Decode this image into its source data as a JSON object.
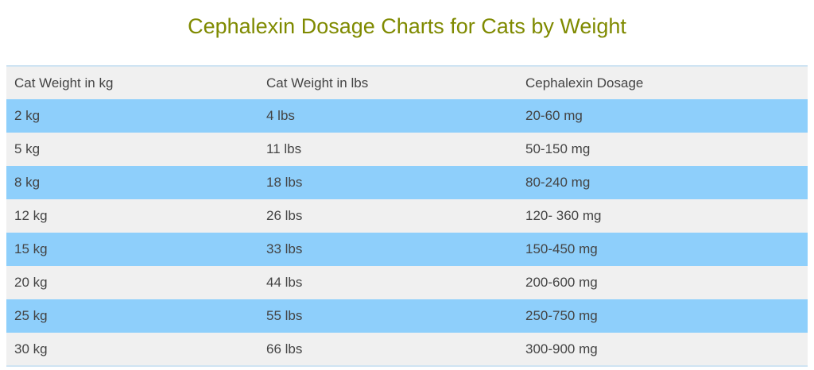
{
  "title": "Cephalexin Dosage Charts for Cats by Weight",
  "colors": {
    "title": "#7f8a00",
    "stripe": "#8ecffb",
    "row": "#f0f0f0"
  },
  "headers": [
    "Cat Weight in kg",
    "Cat Weight in lbs",
    "Cephalexin Dosage"
  ],
  "rows": [
    [
      "2 kg",
      "4 lbs",
      "20-60 mg"
    ],
    [
      "5 kg",
      "11 lbs",
      "50-150 mg"
    ],
    [
      "8 kg",
      "18 lbs",
      "80-240 mg"
    ],
    [
      "12 kg",
      "26 lbs",
      "120- 360 mg"
    ],
    [
      "15 kg",
      "33 lbs",
      "150-450 mg"
    ],
    [
      "20 kg",
      "44 lbs",
      "200-600 mg"
    ],
    [
      "25 kg",
      "55 lbs",
      "250-750 mg"
    ],
    [
      "30 kg",
      "66 lbs",
      "300-900 mg"
    ]
  ]
}
